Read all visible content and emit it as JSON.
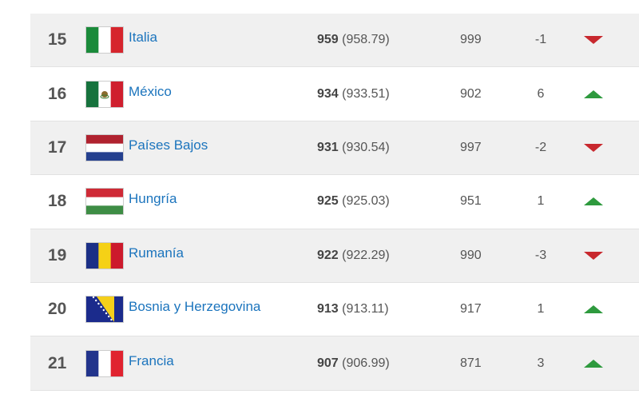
{
  "table": {
    "rows": [
      {
        "rank": 15,
        "name": "Italia",
        "points": 959,
        "points_precise": "(958.79)",
        "previous_points": 999,
        "change": -1
      },
      {
        "rank": 16,
        "name": "México",
        "points": 934,
        "points_precise": "(933.51)",
        "previous_points": 902,
        "change": 6
      },
      {
        "rank": 17,
        "name": "Países Bajos",
        "points": 931,
        "points_precise": "(930.54)",
        "previous_points": 997,
        "change": -2
      },
      {
        "rank": 18,
        "name": "Hungría",
        "points": 925,
        "points_precise": "(925.03)",
        "previous_points": 951,
        "change": 1
      },
      {
        "rank": 19,
        "name": "Rumanía",
        "points": 922,
        "points_precise": "(922.29)",
        "previous_points": 990,
        "change": -3
      },
      {
        "rank": 20,
        "name": "Bosnia y Herzegovina",
        "points": 913,
        "points_precise": "(913.11)",
        "previous_points": 917,
        "change": 1
      },
      {
        "rank": 21,
        "name": "Francia",
        "points": 907,
        "points_precise": "(906.99)",
        "previous_points": 871,
        "change": 3
      }
    ]
  }
}
